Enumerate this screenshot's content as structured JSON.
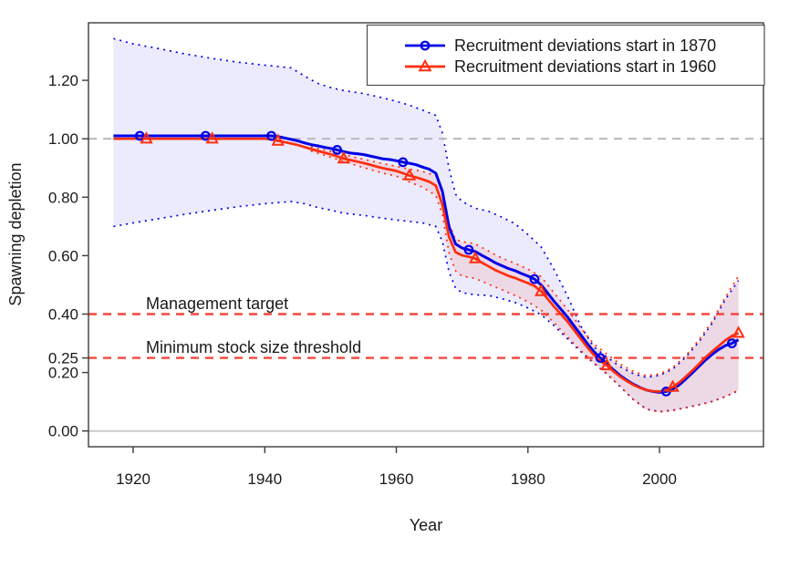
{
  "figure": {
    "background": "#ffffff",
    "xlabel": "Year",
    "ylabel": "Spawning depletion"
  },
  "legend": {
    "entries": [
      {
        "label": "Recruitment deviations start in 1870",
        "color": "#0000e8",
        "marker": "circle"
      },
      {
        "label": "Recruitment deviations start in 1960",
        "color": "#ff2d0d",
        "marker": "triangle"
      }
    ]
  },
  "annotations": {
    "management_target": {
      "label": "Management target",
      "value": 0.4
    },
    "msst": {
      "label": "Minimum stock size threshold",
      "value": 0.25
    }
  },
  "chart_data": {
    "type": "line",
    "title": "",
    "xlabel": "Year",
    "ylabel": "Spawning depletion",
    "xlim": [
      1913.2,
      2015.8
    ],
    "ylim": [
      -0.054,
      1.397
    ],
    "x_ticks": [
      1920,
      1940,
      1960,
      1980,
      2000
    ],
    "x_tick_labels": [
      "1920",
      "1940",
      "1960",
      "1980",
      "2000"
    ],
    "y_ticks": [
      0.0,
      0.2,
      0.25,
      0.4,
      0.6,
      0.8,
      1.0,
      1.2
    ],
    "y_tick_labels": [
      "0.00",
      "0.20",
      "0.25",
      "0.40",
      "0.60",
      "0.80",
      "1.00",
      "1.20"
    ],
    "grid": false,
    "legend_position": "top-right",
    "reference_lines": [
      {
        "id": "unfished-level-line",
        "value": 1.0,
        "style": "dashed",
        "color": "#b4b4b4",
        "width": 1.8
      },
      {
        "id": "management-target-line",
        "value": 0.4,
        "style": "dashed",
        "color": "#f5473c",
        "width": 2.4
      },
      {
        "id": "msst-line",
        "value": 0.25,
        "style": "dashed",
        "color": "#f5473c",
        "width": 2.4
      },
      {
        "id": "zero-line",
        "value": 0.0,
        "style": "solid",
        "color": "#cbcbcb",
        "width": 2
      }
    ],
    "series": [
      {
        "id": "recdevs-1870",
        "name": "Recruitment deviations start in 1870",
        "color": "#0000e8",
        "marker": "circle",
        "x_start": 1917,
        "values": [
          1.01,
          1.01,
          1.01,
          1.01,
          1.01,
          1.01,
          1.01,
          1.01,
          1.01,
          1.01,
          1.01,
          1.01,
          1.01,
          1.01,
          1.01,
          1.01,
          1.01,
          1.01,
          1.01,
          1.01,
          1.01,
          1.01,
          1.01,
          1.01,
          1.01,
          1.008,
          1.003,
          0.998,
          0.993,
          0.986,
          0.98,
          0.976,
          0.971,
          0.967,
          0.962,
          0.956,
          0.951,
          0.949,
          0.946,
          0.941,
          0.936,
          0.931,
          0.929,
          0.925,
          0.92,
          0.916,
          0.911,
          0.903,
          0.896,
          0.882,
          0.82,
          0.7,
          0.64,
          0.626,
          0.62,
          0.614,
          0.601,
          0.589,
          0.576,
          0.566,
          0.556,
          0.549,
          0.539,
          0.53,
          0.52,
          0.5,
          0.472,
          0.443,
          0.417,
          0.39,
          0.36,
          0.33,
          0.3,
          0.272,
          0.25,
          0.23,
          0.209,
          0.19,
          0.174,
          0.16,
          0.149,
          0.14,
          0.135,
          0.132,
          0.135,
          0.143,
          0.158,
          0.178,
          0.199,
          0.221,
          0.243,
          0.262,
          0.279,
          0.292,
          0.3,
          0.312
        ],
        "marker_years": [
          1921,
          1931,
          1941,
          1951,
          1961,
          1971,
          1981,
          1991,
          2001,
          2011
        ],
        "marker_values": [
          1.01,
          1.01,
          1.01,
          0.962,
          0.92,
          0.62,
          0.52,
          0.25,
          0.135,
          0.3
        ],
        "band": {
          "fill": "rgba(70,70,235,0.11)",
          "x": [
            1917,
            1920,
            1924,
            1928,
            1932,
            1936,
            1940,
            1944,
            1946,
            1948,
            1950,
            1952,
            1955,
            1958,
            1960,
            1962,
            1964,
            1966,
            1967,
            1968,
            1969,
            1970,
            1972,
            1974,
            1976,
            1978,
            1980,
            1982,
            1984,
            1986,
            1988,
            1990,
            1992,
            1994,
            1996,
            1998,
            2000,
            2002,
            2004,
            2006,
            2008,
            2010,
            2012
          ],
          "upper": [
            1.343,
            1.325,
            1.308,
            1.29,
            1.275,
            1.262,
            1.252,
            1.243,
            1.215,
            1.19,
            1.175,
            1.165,
            1.155,
            1.14,
            1.128,
            1.115,
            1.098,
            1.08,
            1.02,
            0.9,
            0.81,
            0.785,
            0.762,
            0.752,
            0.732,
            0.71,
            0.672,
            0.63,
            0.552,
            0.462,
            0.36,
            0.288,
            0.253,
            0.22,
            0.196,
            0.183,
            0.19,
            0.212,
            0.253,
            0.305,
            0.368,
            0.45,
            0.515
          ],
          "lower": [
            0.7,
            0.712,
            0.727,
            0.742,
            0.755,
            0.768,
            0.778,
            0.785,
            0.778,
            0.765,
            0.756,
            0.745,
            0.738,
            0.728,
            0.722,
            0.717,
            0.712,
            0.7,
            0.648,
            0.545,
            0.488,
            0.473,
            0.466,
            0.464,
            0.453,
            0.44,
            0.421,
            0.398,
            0.36,
            0.315,
            0.272,
            0.232,
            0.195,
            0.152,
            0.108,
            0.075,
            0.066,
            0.071,
            0.08,
            0.09,
            0.101,
            0.118,
            0.138
          ]
        }
      },
      {
        "id": "recdevs-1960",
        "name": "Recruitment deviations start in 1960",
        "color": "#ff2d0d",
        "marker": "triangle",
        "x_start": 1917,
        "values": [
          1.0,
          1.0,
          1.0,
          1.0,
          1.0,
          1.0,
          1.0,
          1.0,
          1.0,
          1.0,
          1.0,
          1.0,
          1.0,
          1.0,
          1.0,
          1.0,
          1.0,
          1.0,
          1.0,
          1.0,
          1.0,
          1.0,
          1.0,
          1.0,
          0.998,
          0.993,
          0.989,
          0.984,
          0.979,
          0.972,
          0.965,
          0.959,
          0.953,
          0.947,
          0.94,
          0.932,
          0.927,
          0.922,
          0.917,
          0.911,
          0.905,
          0.899,
          0.895,
          0.89,
          0.882,
          0.874,
          0.868,
          0.861,
          0.853,
          0.84,
          0.775,
          0.665,
          0.612,
          0.601,
          0.596,
          0.59,
          0.576,
          0.564,
          0.551,
          0.541,
          0.531,
          0.524,
          0.515,
          0.506,
          0.496,
          0.478,
          0.452,
          0.425,
          0.4,
          0.374,
          0.345,
          0.316,
          0.287,
          0.261,
          0.24,
          0.224,
          0.204,
          0.186,
          0.171,
          0.158,
          0.148,
          0.14,
          0.136,
          0.135,
          0.14,
          0.15,
          0.166,
          0.186,
          0.207,
          0.229,
          0.252,
          0.272,
          0.291,
          0.31,
          0.325,
          0.335
        ],
        "marker_years": [
          1922,
          1932,
          1942,
          1952,
          1962,
          1972,
          1982,
          1992,
          2002,
          2012
        ],
        "marker_values": [
          1.0,
          1.0,
          0.993,
          0.932,
          0.874,
          0.59,
          0.478,
          0.224,
          0.15,
          0.335
        ],
        "band": {
          "fill": "rgba(255,60,30,0.10)",
          "x": [
            1947,
            1950,
            1954,
            1958,
            1960,
            1962,
            1964,
            1966,
            1967,
            1968,
            1969,
            1970,
            1972,
            1974,
            1976,
            1978,
            1980,
            1982,
            1984,
            1986,
            1988,
            1990,
            1992,
            1994,
            1996,
            1998,
            2000,
            2002,
            2004,
            2006,
            2008,
            2010,
            2012
          ],
          "upper": [
            0.972,
            0.957,
            0.935,
            0.915,
            0.906,
            0.896,
            0.888,
            0.874,
            0.815,
            0.71,
            0.655,
            0.648,
            0.64,
            0.616,
            0.592,
            0.574,
            0.554,
            0.528,
            0.472,
            0.416,
            0.354,
            0.298,
            0.263,
            0.229,
            0.204,
            0.189,
            0.195,
            0.217,
            0.258,
            0.312,
            0.375,
            0.458,
            0.53
          ],
          "lower": [
            0.958,
            0.937,
            0.908,
            0.882,
            0.872,
            0.852,
            0.834,
            0.806,
            0.74,
            0.61,
            0.548,
            0.53,
            0.522,
            0.502,
            0.484,
            0.464,
            0.442,
            0.414,
            0.37,
            0.322,
            0.276,
            0.234,
            0.196,
            0.153,
            0.108,
            0.074,
            0.065,
            0.07,
            0.079,
            0.089,
            0.1,
            0.117,
            0.14
          ]
        }
      }
    ]
  }
}
